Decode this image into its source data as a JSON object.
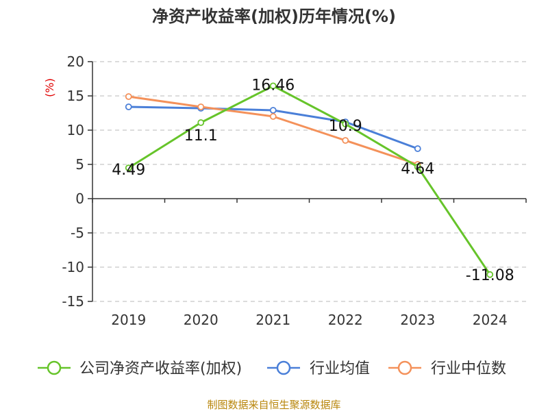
{
  "chart_data": {
    "type": "line",
    "title": "净资产收益率(加权)历年情况(%)",
    "xlabel": "",
    "ylabel": "(%)",
    "categories": [
      "2019",
      "2020",
      "2021",
      "2022",
      "2023",
      "2024"
    ],
    "ylim": [
      -15,
      20
    ],
    "yticks": [
      20,
      15,
      10,
      5,
      0,
      -5,
      -10,
      -15
    ],
    "ytick_labels": [
      "20",
      "15",
      "10",
      "5",
      "0",
      "-5",
      "-10",
      "-15"
    ],
    "grid": true,
    "series": [
      {
        "name": "公司净资产收益率(加权)",
        "color": "#66c42a",
        "values": [
          4.49,
          11.1,
          16.46,
          10.9,
          4.64,
          -11.08
        ],
        "labels": [
          "4.49",
          "11.1",
          "16.46",
          "10.9",
          "4.64",
          "-11.08"
        ]
      },
      {
        "name": "行业均值",
        "color": "#4a7fd8",
        "values": [
          13.4,
          13.2,
          12.9,
          11.2,
          7.3,
          null
        ]
      },
      {
        "name": "行业中位数",
        "color": "#f4915a",
        "values": [
          14.9,
          13.4,
          12.0,
          8.5,
          5.0,
          null
        ]
      }
    ],
    "legend_position": "bottom",
    "source": "制图数据来自恒生聚源数据库"
  }
}
